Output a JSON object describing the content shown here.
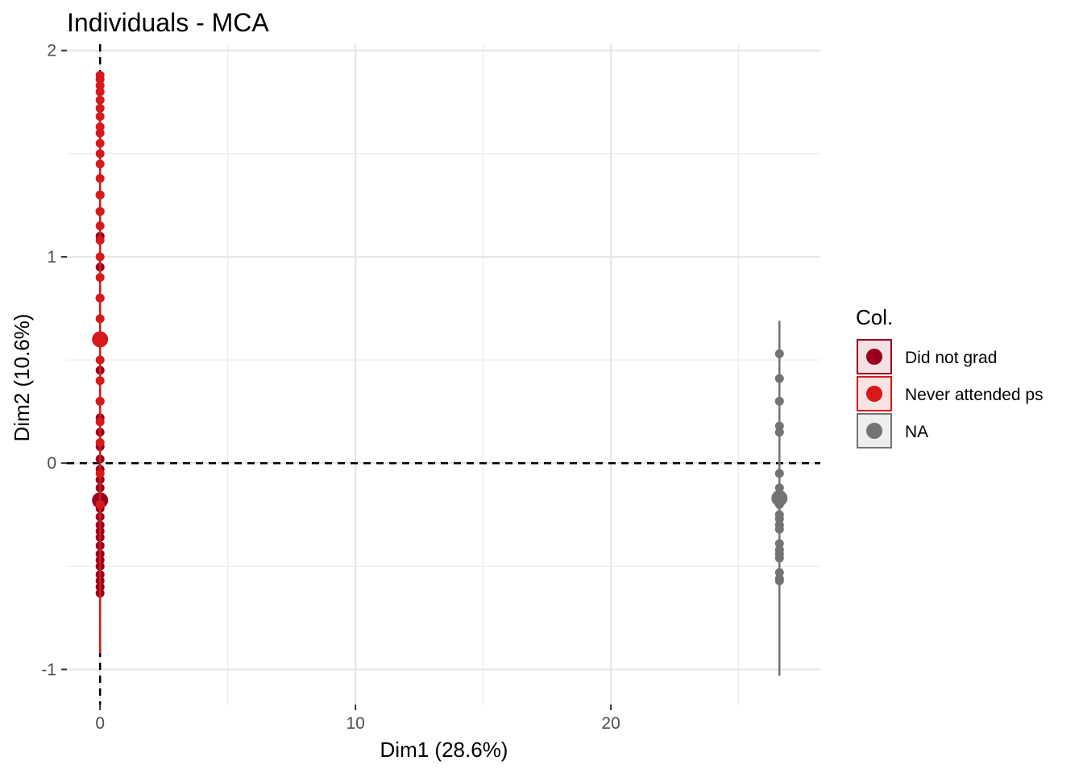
{
  "chart_data": {
    "type": "scatter",
    "title": "Individuals - MCA",
    "xlabel": "Dim1 (28.6%)",
    "ylabel": "Dim2 (10.6%)",
    "xlim": [
      -1.3,
      28.2
    ],
    "ylim": [
      -1.17,
      2.03
    ],
    "x_ticks": [
      0,
      10,
      20
    ],
    "x_tick_labels": [
      "0",
      "10",
      "20"
    ],
    "y_ticks": [
      -1,
      0,
      1,
      2
    ],
    "y_tick_labels": [
      "-1",
      "0",
      "1",
      "2"
    ],
    "x_minor_ticks": [
      5,
      15,
      25
    ],
    "y_minor_ticks": [
      -0.5,
      0.5,
      1.5
    ],
    "grid": true,
    "reference_lines": [
      {
        "axis": "x",
        "value": 0,
        "style": "dashed"
      },
      {
        "axis": "y",
        "value": 0,
        "style": "dashed"
      }
    ],
    "legend": {
      "title": "Col.",
      "placement": "right",
      "entries": [
        "Did not grad",
        "Never attended ps",
        "NA"
      ]
    },
    "series": [
      {
        "name": "Did not grad",
        "color": "#99001c",
        "x": [
          0,
          0,
          0,
          0,
          0,
          0,
          0,
          0,
          0,
          0,
          0,
          0,
          0,
          0,
          0,
          0,
          0,
          0,
          0,
          0,
          0,
          0,
          0,
          0,
          0,
          0,
          0,
          0,
          0
        ],
        "y": [
          -0.63,
          -0.6,
          -0.57,
          -0.54,
          -0.5,
          -0.47,
          -0.44,
          -0.4,
          -0.36,
          -0.33,
          -0.3,
          -0.26,
          -0.22,
          -0.17,
          -0.12,
          -0.08,
          -0.03,
          0.02,
          0.08,
          0.15,
          0.22,
          0.3,
          0.45,
          0.6,
          0.8,
          0.95,
          1.1,
          1.22,
          1.3
        ],
        "whisker": [
          -0.92,
          1.3
        ],
        "centroid": [
          0,
          -0.18
        ]
      },
      {
        "name": "Never attended ps",
        "color": "#d7191c",
        "x": [
          0,
          0,
          0,
          0,
          0,
          0,
          0,
          0,
          0,
          0,
          0,
          0,
          0,
          0,
          0,
          0,
          0,
          0,
          0,
          0,
          0,
          0,
          0,
          0,
          0,
          0,
          0,
          0,
          0
        ],
        "y": [
          -0.2,
          -0.05,
          0.1,
          0.2,
          0.3,
          0.4,
          0.5,
          0.6,
          0.7,
          0.8,
          0.9,
          1.0,
          1.08,
          1.15,
          1.22,
          1.3,
          1.38,
          1.45,
          1.5,
          1.55,
          1.6,
          1.63,
          1.68,
          1.72,
          1.76,
          1.8,
          1.83,
          1.86,
          1.88
        ],
        "whisker": [
          -0.92,
          1.9
        ],
        "centroid": [
          0,
          0.6
        ]
      },
      {
        "name": "NA",
        "color": "#737373",
        "x": [
          26.6,
          26.6,
          26.6,
          26.6,
          26.6,
          26.6,
          26.6,
          26.6,
          26.6,
          26.6,
          26.6,
          26.6,
          26.6,
          26.6,
          26.6,
          26.6,
          26.6,
          26.6,
          26.6,
          26.6
        ],
        "y": [
          0.53,
          0.41,
          0.3,
          0.18,
          0.15,
          -0.05,
          -0.12,
          -0.16,
          -0.2,
          -0.25,
          -0.27,
          -0.3,
          -0.32,
          -0.39,
          -0.42,
          -0.44,
          -0.46,
          -0.53,
          -0.56,
          -0.57
        ],
        "whisker": [
          -1.03,
          0.69
        ],
        "centroid": [
          26.6,
          -0.17
        ]
      }
    ]
  }
}
